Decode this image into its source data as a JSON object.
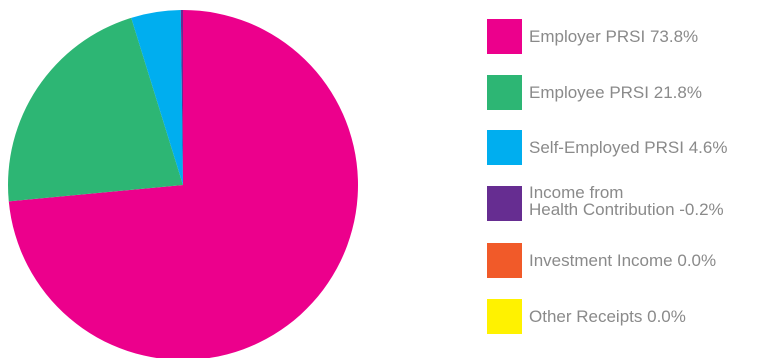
{
  "chart_data": {
    "type": "pie",
    "slices": [
      {
        "label": "Employer PRSI",
        "value_label": "73.8%",
        "value": 73.8,
        "color": "#ec008c"
      },
      {
        "label": "Employee PRSI",
        "value_label": "21.8%",
        "value": 21.8,
        "color": "#2db674"
      },
      {
        "label": "Self-Employed PRSI",
        "value_label": "4.6%",
        "value": 4.6,
        "color": "#00aeef"
      },
      {
        "label": "Income from Health Contribution",
        "value_label": "-0.2%",
        "value": -0.2,
        "color": "#662d91"
      },
      {
        "label": "Investment Income",
        "value_label": "0.0%",
        "value": 0.0,
        "color": "#f15a29"
      },
      {
        "label": "Other Receipts",
        "value_label": "0.0%",
        "value": 0.0,
        "color": "#fff200"
      }
    ],
    "legend_placement": "right"
  }
}
